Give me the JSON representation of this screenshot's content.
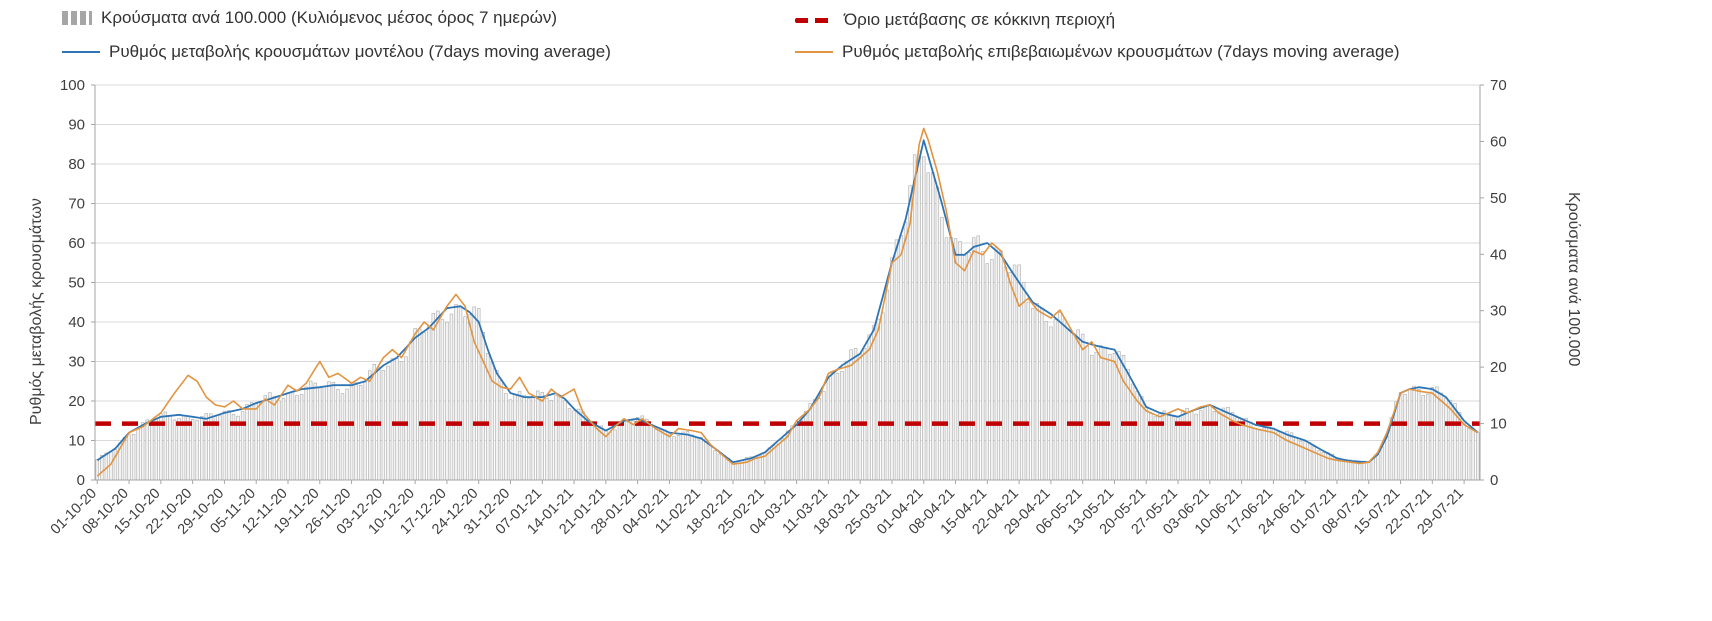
{
  "chart_data": {
    "type": "combo",
    "title": "",
    "left_axis": {
      "label": "Ρυθμός μεταβολής κρουσμάτων",
      "min": 0,
      "max": 100,
      "ticks": [
        0,
        10,
        20,
        30,
        40,
        50,
        60,
        70,
        80,
        90,
        100
      ]
    },
    "right_axis": {
      "label": "Κρούσματα ανά 100.000",
      "min": 0,
      "max": 70,
      "ticks": [
        0,
        10,
        20,
        30,
        40,
        50,
        60,
        70
      ]
    },
    "x_axis": {
      "total_days": 305,
      "tick_interval_days": 7,
      "tick_labels": [
        "01-10-20",
        "08-10-20",
        "15-10-20",
        "22-10-20",
        "29-10-20",
        "05-11-20",
        "12-11-20",
        "19-11-20",
        "26-11-20",
        "03-12-20",
        "10-12-20",
        "17-12-20",
        "24-12-20",
        "31-12-20",
        "07-01-21",
        "14-01-21",
        "21-01-21",
        "28-01-21",
        "04-02-21",
        "11-02-21",
        "18-02-21",
        "25-02-21",
        "04-03-21",
        "11-03-21",
        "18-03-21",
        "25-03-21",
        "01-04-21",
        "08-04-21",
        "15-04-21",
        "22-04-21",
        "29-04-21",
        "06-05-21",
        "13-05-21",
        "20-05-21",
        "27-05-21",
        "03-06-21",
        "10-06-21",
        "17-06-21",
        "24-06-21",
        "01-07-21",
        "08-07-21",
        "15-07-21",
        "22-07-21",
        "29-07-21"
      ]
    },
    "threshold": {
      "label": "Όριο μετάβασης σε κόκκινη περιοχή",
      "value_right_axis": 10,
      "color": "#c00000"
    },
    "grid": true,
    "legend_position": "top",
    "series": [
      {
        "name": "Κρούσματα ανά 100.000 (Κυλιόμενος μέσος όρος 7 ημερών)",
        "type": "bar",
        "axis": "right",
        "fill": "#f2f2f2",
        "stroke": "#adadad",
        "derived_from_series": "model",
        "scale_factor": 0.7
      },
      {
        "name": "Ρυθμός μεταβολής κρουσμάτων μοντέλου (7days moving average)",
        "id": "model",
        "type": "line",
        "axis": "left",
        "color": "#2e75b6",
        "anchors": [
          [
            0,
            5
          ],
          [
            4,
            8
          ],
          [
            7,
            12
          ],
          [
            11,
            14.5
          ],
          [
            14,
            16
          ],
          [
            18,
            16.5
          ],
          [
            21,
            16
          ],
          [
            24,
            15.5
          ],
          [
            28,
            17
          ],
          [
            32,
            18
          ],
          [
            35,
            19.5
          ],
          [
            38,
            20.5
          ],
          [
            42,
            22
          ],
          [
            45,
            23
          ],
          [
            49,
            23.5
          ],
          [
            52,
            24
          ],
          [
            56,
            24
          ],
          [
            59,
            25
          ],
          [
            63,
            29
          ],
          [
            66,
            31
          ],
          [
            70,
            36
          ],
          [
            73,
            38.5
          ],
          [
            77,
            43.5
          ],
          [
            80,
            44
          ],
          [
            82,
            42.5
          ],
          [
            84,
            40
          ],
          [
            86,
            33
          ],
          [
            88,
            27
          ],
          [
            91,
            22
          ],
          [
            94,
            21
          ],
          [
            98,
            21
          ],
          [
            101,
            22
          ],
          [
            103,
            20.5
          ],
          [
            105,
            18
          ],
          [
            108,
            15
          ],
          [
            112,
            12.5
          ],
          [
            116,
            15
          ],
          [
            119,
            15.5
          ],
          [
            122,
            14
          ],
          [
            126,
            12
          ],
          [
            130,
            11.5
          ],
          [
            133,
            10.5
          ],
          [
            136,
            8
          ],
          [
            140,
            4.5
          ],
          [
            144,
            5.5
          ],
          [
            147,
            7
          ],
          [
            150,
            10
          ],
          [
            154,
            14
          ],
          [
            157,
            18
          ],
          [
            161,
            26
          ],
          [
            164,
            29
          ],
          [
            168,
            32
          ],
          [
            171,
            38
          ],
          [
            175,
            55
          ],
          [
            178,
            66
          ],
          [
            182,
            86
          ],
          [
            184,
            78
          ],
          [
            186,
            70
          ],
          [
            189,
            57
          ],
          [
            191,
            57
          ],
          [
            193,
            59
          ],
          [
            196,
            60
          ],
          [
            199,
            57
          ],
          [
            203,
            50
          ],
          [
            206,
            45
          ],
          [
            210,
            42
          ],
          [
            213,
            39
          ],
          [
            217,
            35
          ],
          [
            220,
            34
          ],
          [
            224,
            33
          ],
          [
            227,
            27
          ],
          [
            231,
            18.5
          ],
          [
            234,
            17
          ],
          [
            238,
            16
          ],
          [
            241,
            17.5
          ],
          [
            245,
            19
          ],
          [
            248,
            17.5
          ],
          [
            252,
            15.5
          ],
          [
            255,
            14
          ],
          [
            259,
            13
          ],
          [
            262,
            11.5
          ],
          [
            266,
            10
          ],
          [
            269,
            8
          ],
          [
            273,
            5.5
          ],
          [
            276,
            4.8
          ],
          [
            280,
            4.5
          ],
          [
            282,
            6.5
          ],
          [
            284,
            11
          ],
          [
            287,
            22
          ],
          [
            289,
            23
          ],
          [
            291,
            23.5
          ],
          [
            294,
            23
          ],
          [
            297,
            21
          ],
          [
            299,
            18
          ],
          [
            301,
            15
          ],
          [
            304,
            12
          ]
        ]
      },
      {
        "name": "Ρυθμός μεταβολής επιβεβαιωμένων κρουσμάτων (7days moving average)",
        "id": "confirmed",
        "type": "line",
        "axis": "left",
        "color": "#e29440",
        "anchors": [
          [
            0,
            1
          ],
          [
            3,
            4
          ],
          [
            7,
            12
          ],
          [
            10,
            13.5
          ],
          [
            14,
            17
          ],
          [
            17,
            22
          ],
          [
            20,
            26.5
          ],
          [
            22,
            25
          ],
          [
            24,
            21
          ],
          [
            26,
            19
          ],
          [
            28,
            18.5
          ],
          [
            30,
            20
          ],
          [
            32,
            18
          ],
          [
            35,
            18
          ],
          [
            37,
            20.5
          ],
          [
            39,
            19
          ],
          [
            42,
            24
          ],
          [
            44,
            22.5
          ],
          [
            46,
            24.5
          ],
          [
            49,
            30
          ],
          [
            51,
            26
          ],
          [
            53,
            27
          ],
          [
            56,
            24.5
          ],
          [
            58,
            26
          ],
          [
            60,
            25
          ],
          [
            63,
            31
          ],
          [
            65,
            33
          ],
          [
            67,
            31
          ],
          [
            70,
            37
          ],
          [
            72,
            40
          ],
          [
            74,
            38
          ],
          [
            77,
            44
          ],
          [
            79,
            47
          ],
          [
            81,
            44
          ],
          [
            83,
            35
          ],
          [
            85,
            30
          ],
          [
            87,
            25
          ],
          [
            89,
            23.5
          ],
          [
            91,
            23
          ],
          [
            93,
            26
          ],
          [
            95,
            22
          ],
          [
            98,
            20
          ],
          [
            100,
            23
          ],
          [
            102,
            21
          ],
          [
            105,
            23
          ],
          [
            107,
            17
          ],
          [
            110,
            13
          ],
          [
            112,
            11
          ],
          [
            114,
            13.5
          ],
          [
            116,
            15.5
          ],
          [
            118,
            14
          ],
          [
            120,
            15.5
          ],
          [
            123,
            13
          ],
          [
            126,
            11
          ],
          [
            128,
            13
          ],
          [
            131,
            12.5
          ],
          [
            133,
            12
          ],
          [
            135,
            9
          ],
          [
            138,
            6
          ],
          [
            140,
            4
          ],
          [
            143,
            4.5
          ],
          [
            145,
            5.5
          ],
          [
            147,
            6
          ],
          [
            149,
            8
          ],
          [
            152,
            11
          ],
          [
            154,
            15
          ],
          [
            157,
            18
          ],
          [
            159,
            21
          ],
          [
            161,
            27
          ],
          [
            163,
            28
          ],
          [
            166,
            29
          ],
          [
            168,
            31
          ],
          [
            170,
            33
          ],
          [
            172,
            38
          ],
          [
            175,
            55
          ],
          [
            177,
            57
          ],
          [
            179,
            65
          ],
          [
            181,
            85
          ],
          [
            182,
            89
          ],
          [
            183,
            86
          ],
          [
            185,
            78
          ],
          [
            187,
            68
          ],
          [
            189,
            55
          ],
          [
            191,
            53
          ],
          [
            193,
            58
          ],
          [
            195,
            57
          ],
          [
            197,
            60
          ],
          [
            199,
            58
          ],
          [
            201,
            50
          ],
          [
            203,
            44
          ],
          [
            205,
            46
          ],
          [
            207,
            43
          ],
          [
            210,
            41
          ],
          [
            212,
            43
          ],
          [
            214,
            39
          ],
          [
            217,
            33
          ],
          [
            219,
            35
          ],
          [
            221,
            31
          ],
          [
            224,
            30
          ],
          [
            226,
            25
          ],
          [
            229,
            20
          ],
          [
            231,
            17.5
          ],
          [
            234,
            16
          ],
          [
            236,
            17
          ],
          [
            238,
            18
          ],
          [
            240,
            17
          ],
          [
            243,
            18.5
          ],
          [
            245,
            19
          ],
          [
            247,
            17
          ],
          [
            250,
            15
          ],
          [
            252,
            14
          ],
          [
            255,
            13
          ],
          [
            257,
            12.5
          ],
          [
            259,
            12
          ],
          [
            262,
            10
          ],
          [
            264,
            9
          ],
          [
            266,
            8
          ],
          [
            269,
            6.5
          ],
          [
            271,
            5.5
          ],
          [
            273,
            5
          ],
          [
            276,
            4.5
          ],
          [
            278,
            4.2
          ],
          [
            280,
            4.5
          ],
          [
            282,
            7
          ],
          [
            284,
            12
          ],
          [
            287,
            22
          ],
          [
            289,
            23
          ],
          [
            291,
            22.5
          ],
          [
            294,
            22
          ],
          [
            296,
            20
          ],
          [
            298,
            18
          ],
          [
            301,
            14
          ],
          [
            304,
            12
          ]
        ]
      }
    ]
  }
}
